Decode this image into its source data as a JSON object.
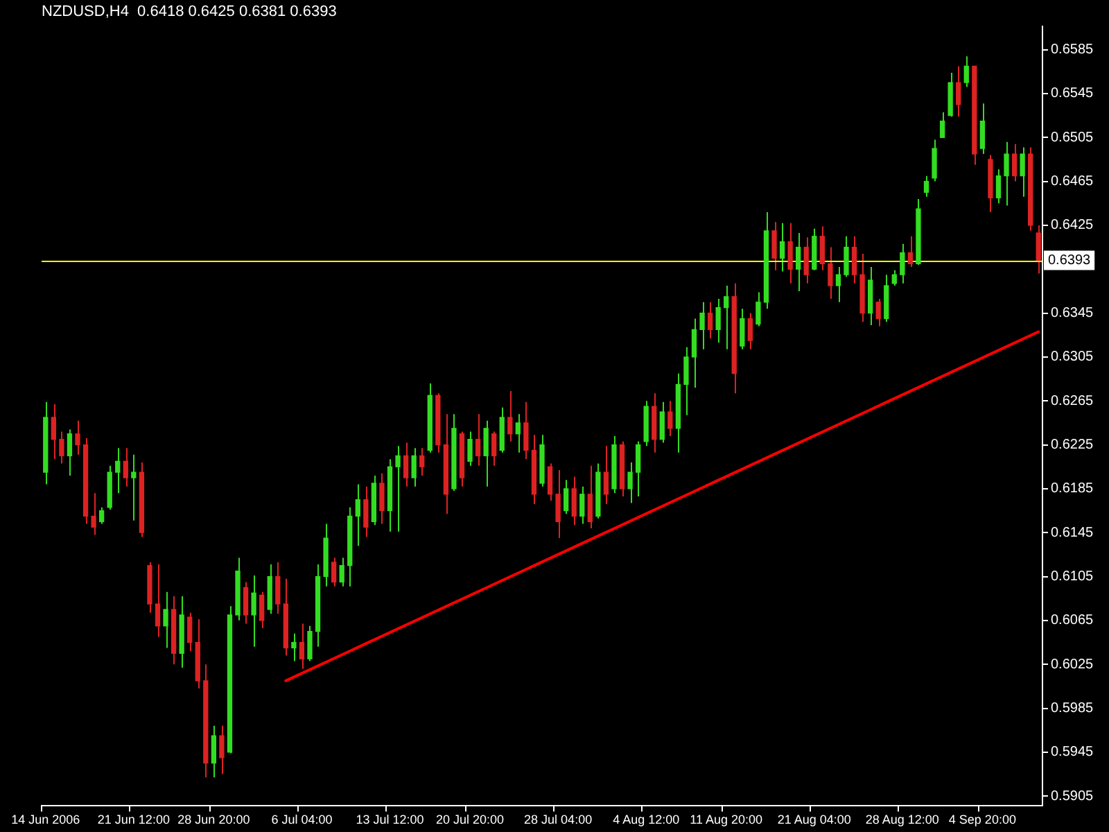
{
  "chart_data": {
    "type": "candlestick",
    "title": "NZDUSD,H4  0.6418 0.6425 0.6381 0.6393",
    "categories": [
      "14 Jun 2006",
      null,
      null,
      null,
      null,
      null,
      null,
      null,
      null,
      null,
      null,
      "21 Jun 12:00",
      null,
      null,
      null,
      null,
      null,
      null,
      null,
      null,
      null,
      "28 Jun 20:00",
      null,
      null,
      null,
      null,
      null,
      null,
      null,
      null,
      null,
      null,
      "6 Jul 04:00",
      null,
      null,
      null,
      null,
      null,
      null,
      null,
      null,
      null,
      null,
      "13 Jul 12:00",
      null,
      null,
      null,
      null,
      null,
      null,
      null,
      null,
      null,
      "20 Jul 20:00",
      null,
      null,
      null,
      null,
      null,
      null,
      null,
      null,
      null,
      null,
      "28 Jul 04:00",
      null,
      null,
      null,
      null,
      null,
      null,
      null,
      null,
      null,
      null,
      "4 Aug 12:00",
      null,
      null,
      null,
      null,
      null,
      null,
      null,
      null,
      null,
      "11 Aug 20:00",
      null,
      null,
      null,
      null,
      null,
      null,
      null,
      null,
      null,
      null,
      "21 Aug 04:00",
      null,
      null,
      null,
      null,
      null,
      null,
      null,
      null,
      null,
      null,
      "28 Aug 12:00",
      null,
      null,
      null,
      null,
      null,
      null,
      null,
      null,
      null,
      "4 Sep 20:00",
      null,
      null,
      null,
      null,
      null,
      null,
      null
    ],
    "ohlc": [
      [
        0.62,
        0.6264,
        0.6189,
        0.625
      ],
      [
        0.625,
        0.6262,
        0.6212,
        0.623
      ],
      [
        0.623,
        0.6237,
        0.6208,
        0.6215
      ],
      [
        0.6215,
        0.6239,
        0.6197,
        0.6235
      ],
      [
        0.6235,
        0.6247,
        0.6216,
        0.6225
      ],
      [
        0.6225,
        0.6231,
        0.6153,
        0.616
      ],
      [
        0.616,
        0.6181,
        0.6143,
        0.615
      ],
      [
        0.6155,
        0.6168,
        0.6153,
        0.6165
      ],
      [
        0.6168,
        0.6206,
        0.6166,
        0.62
      ],
      [
        0.62,
        0.6222,
        0.6181,
        0.621
      ],
      [
        0.621,
        0.6222,
        0.6187,
        0.6195
      ],
      [
        0.6195,
        0.6216,
        0.6156,
        0.62
      ],
      [
        0.62,
        0.6209,
        0.6141,
        0.6145
      ],
      [
        0.6115,
        0.6118,
        0.6072,
        0.608
      ],
      [
        0.608,
        0.6116,
        0.605,
        0.606
      ],
      [
        0.606,
        0.6091,
        0.604,
        0.6075
      ],
      [
        0.6075,
        0.6087,
        0.6025,
        0.6035
      ],
      [
        0.6035,
        0.6087,
        0.6022,
        0.607
      ],
      [
        0.6068,
        0.6072,
        0.6037,
        0.6045
      ],
      [
        0.6045,
        0.6066,
        0.6003,
        0.601
      ],
      [
        0.601,
        0.6025,
        0.5922,
        0.5935
      ],
      [
        0.5935,
        0.5969,
        0.5922,
        0.596
      ],
      [
        0.596,
        0.5969,
        0.5925,
        0.594
      ],
      [
        0.5945,
        0.6078,
        0.5944,
        0.607
      ],
      [
        0.607,
        0.6122,
        0.6065,
        0.611
      ],
      [
        0.6095,
        0.61,
        0.6062,
        0.607
      ],
      [
        0.607,
        0.6106,
        0.6041,
        0.609
      ],
      [
        0.6088,
        0.6091,
        0.6058,
        0.6065
      ],
      [
        0.6075,
        0.6116,
        0.6071,
        0.6105
      ],
      [
        0.6105,
        0.6118,
        0.6071,
        0.608
      ],
      [
        0.608,
        0.6103,
        0.6033,
        0.604
      ],
      [
        0.604,
        0.6053,
        0.6028,
        0.6045
      ],
      [
        0.6045,
        0.6062,
        0.6021,
        0.603
      ],
      [
        0.603,
        0.606,
        0.6028,
        0.6055
      ],
      [
        0.6055,
        0.6116,
        0.6041,
        0.6105
      ],
      [
        0.6105,
        0.6153,
        0.6096,
        0.614
      ],
      [
        0.6118,
        0.6122,
        0.6096,
        0.61
      ],
      [
        0.61,
        0.6122,
        0.6096,
        0.6115
      ],
      [
        0.6115,
        0.6168,
        0.6096,
        0.616
      ],
      [
        0.616,
        0.6189,
        0.6133,
        0.6175
      ],
      [
        0.6175,
        0.6187,
        0.6141,
        0.615
      ],
      [
        0.6155,
        0.6197,
        0.6152,
        0.619
      ],
      [
        0.619,
        0.6199,
        0.6153,
        0.6165
      ],
      [
        0.6165,
        0.6212,
        0.6146,
        0.6205
      ],
      [
        0.6205,
        0.6224,
        0.6146,
        0.6215
      ],
      [
        0.6215,
        0.6227,
        0.6187,
        0.6195
      ],
      [
        0.6195,
        0.6222,
        0.6187,
        0.6215
      ],
      [
        0.6215,
        0.6222,
        0.6197,
        0.6205
      ],
      [
        0.622,
        0.6281,
        0.6218,
        0.627
      ],
      [
        0.627,
        0.6272,
        0.6218,
        0.6225
      ],
      [
        0.6225,
        0.6253,
        0.6162,
        0.618
      ],
      [
        0.6185,
        0.6253,
        0.6183,
        0.624
      ],
      [
        0.6235,
        0.6237,
        0.6187,
        0.6195
      ],
      [
        0.621,
        0.6237,
        0.6206,
        0.623
      ],
      [
        0.623,
        0.6253,
        0.6206,
        0.6215
      ],
      [
        0.6215,
        0.6247,
        0.6187,
        0.624
      ],
      [
        0.6235,
        0.6237,
        0.6206,
        0.6215
      ],
      [
        0.622,
        0.6259,
        0.6218,
        0.625
      ],
      [
        0.625,
        0.6274,
        0.6228,
        0.6235
      ],
      [
        0.6235,
        0.6253,
        0.6218,
        0.6245
      ],
      [
        0.6245,
        0.6264,
        0.6212,
        0.622
      ],
      [
        0.622,
        0.6234,
        0.6171,
        0.618
      ],
      [
        0.619,
        0.6234,
        0.6187,
        0.6225
      ],
      [
        0.6205,
        0.6208,
        0.6174,
        0.618
      ],
      [
        0.618,
        0.6202,
        0.614,
        0.6155
      ],
      [
        0.6165,
        0.6193,
        0.6162,
        0.6185
      ],
      [
        0.6185,
        0.6196,
        0.6152,
        0.616
      ],
      [
        0.616,
        0.6187,
        0.6153,
        0.618
      ],
      [
        0.618,
        0.6206,
        0.6149,
        0.6155
      ],
      [
        0.616,
        0.6208,
        0.6158,
        0.62
      ],
      [
        0.62,
        0.6224,
        0.6171,
        0.618
      ],
      [
        0.6185,
        0.6233,
        0.6181,
        0.6225
      ],
      [
        0.6225,
        0.6228,
        0.6178,
        0.6185
      ],
      [
        0.6185,
        0.6209,
        0.6172,
        0.62
      ],
      [
        0.62,
        0.6228,
        0.6178,
        0.6225
      ],
      [
        0.6228,
        0.6265,
        0.6224,
        0.626
      ],
      [
        0.626,
        0.6272,
        0.6218,
        0.623
      ],
      [
        0.623,
        0.6264,
        0.6227,
        0.6255
      ],
      [
        0.6255,
        0.6265,
        0.6233,
        0.624
      ],
      [
        0.624,
        0.629,
        0.6218,
        0.628
      ],
      [
        0.628,
        0.6314,
        0.6252,
        0.6305
      ],
      [
        0.6305,
        0.634,
        0.6277,
        0.633
      ],
      [
        0.633,
        0.6355,
        0.6312,
        0.6345
      ],
      [
        0.6345,
        0.6355,
        0.6322,
        0.633
      ],
      [
        0.633,
        0.6358,
        0.6318,
        0.635
      ],
      [
        0.635,
        0.637,
        0.6312,
        0.636
      ],
      [
        0.636,
        0.6372,
        0.6272,
        0.629
      ],
      [
        0.6315,
        0.6349,
        0.6312,
        0.634
      ],
      [
        0.634,
        0.6345,
        0.6312,
        0.632
      ],
      [
        0.6335,
        0.6364,
        0.6333,
        0.6355
      ],
      [
        0.6355,
        0.6437,
        0.6349,
        0.642
      ],
      [
        0.642,
        0.6428,
        0.6384,
        0.6395
      ],
      [
        0.6395,
        0.6427,
        0.6383,
        0.641
      ],
      [
        0.641,
        0.6427,
        0.6372,
        0.6385
      ],
      [
        0.6385,
        0.6418,
        0.6365,
        0.6405
      ],
      [
        0.6405,
        0.6414,
        0.6372,
        0.638
      ],
      [
        0.6385,
        0.6422,
        0.6384,
        0.6415
      ],
      [
        0.6415,
        0.6424,
        0.6384,
        0.639
      ],
      [
        0.639,
        0.6405,
        0.6358,
        0.637
      ],
      [
        0.637,
        0.6387,
        0.6355,
        0.638
      ],
      [
        0.638,
        0.6415,
        0.6378,
        0.6405
      ],
      [
        0.6405,
        0.6415,
        0.6372,
        0.638
      ],
      [
        0.638,
        0.6399,
        0.6337,
        0.6345
      ],
      [
        0.6345,
        0.6387,
        0.6334,
        0.6375
      ],
      [
        0.6355,
        0.6358,
        0.6333,
        0.634
      ],
      [
        0.634,
        0.638,
        0.6337,
        0.637
      ],
      [
        0.6372,
        0.6384,
        0.637,
        0.638
      ],
      [
        0.638,
        0.6408,
        0.6372,
        0.64
      ],
      [
        0.64,
        0.6415,
        0.6387,
        0.639
      ],
      [
        0.639,
        0.6449,
        0.6389,
        0.644
      ],
      [
        0.6455,
        0.647,
        0.6451,
        0.6465
      ],
      [
        0.6468,
        0.6503,
        0.6465,
        0.6495
      ],
      [
        0.6505,
        0.6528,
        0.6505,
        0.652
      ],
      [
        0.6525,
        0.6564,
        0.6524,
        0.6555
      ],
      [
        0.6555,
        0.657,
        0.6524,
        0.6535
      ],
      [
        0.6555,
        0.6579,
        0.6551,
        0.657
      ],
      [
        0.657,
        0.657,
        0.648,
        0.649
      ],
      [
        0.6495,
        0.6536,
        0.649,
        0.652
      ],
      [
        0.6485,
        0.6489,
        0.6437,
        0.645
      ],
      [
        0.645,
        0.6476,
        0.6445,
        0.647
      ],
      [
        0.647,
        0.6501,
        0.6443,
        0.649
      ],
      [
        0.649,
        0.6499,
        0.6465,
        0.647
      ],
      [
        0.647,
        0.6496,
        0.6451,
        0.649
      ],
      [
        0.649,
        0.6496,
        0.642,
        0.6425
      ],
      [
        0.6418,
        0.6425,
        0.6381,
        0.6393
      ]
    ],
    "colors": [
      "#33dd22",
      "#dd2222",
      "#dd2222",
      "#33dd22",
      "#dd2222",
      "#dd2222",
      "#dd2222",
      "#33dd22",
      "#33dd22",
      "#33dd22",
      "#dd2222",
      "#33dd22",
      "#dd2222",
      "#dd2222",
      "#dd2222",
      "#33dd22",
      "#dd2222",
      "#33dd22",
      "#dd2222",
      "#dd2222",
      "#dd2222",
      "#33dd22",
      "#dd2222",
      "#33dd22",
      "#33dd22",
      "#dd2222",
      "#33dd22",
      "#dd2222",
      "#33dd22",
      "#dd2222",
      "#dd2222",
      "#33dd22",
      "#dd2222",
      "#33dd22",
      "#33dd22",
      "#33dd22",
      "#dd2222",
      "#33dd22",
      "#33dd22",
      "#33dd22",
      "#dd2222",
      "#33dd22",
      "#dd2222",
      "#33dd22",
      "#33dd22",
      "#dd2222",
      "#33dd22",
      "#dd2222",
      "#33dd22",
      "#dd2222",
      "#dd2222",
      "#33dd22",
      "#dd2222",
      "#33dd22",
      "#dd2222",
      "#33dd22",
      "#dd2222",
      "#33dd22",
      "#dd2222",
      "#33dd22",
      "#dd2222",
      "#dd2222",
      "#33dd22",
      "#dd2222",
      "#dd2222",
      "#33dd22",
      "#dd2222",
      "#33dd22",
      "#dd2222",
      "#33dd22",
      "#dd2222",
      "#33dd22",
      "#dd2222",
      "#33dd22",
      "#33dd22",
      "#33dd22",
      "#dd2222",
      "#33dd22",
      "#dd2222",
      "#33dd22",
      "#33dd22",
      "#33dd22",
      "#33dd22",
      "#dd2222",
      "#33dd22",
      "#33dd22",
      "#dd2222",
      "#33dd22",
      "#dd2222",
      "#33dd22",
      "#33dd22",
      "#dd2222",
      "#33dd22",
      "#dd2222",
      "#33dd22",
      "#dd2222",
      "#33dd22",
      "#dd2222",
      "#dd2222",
      "#33dd22",
      "#33dd22",
      "#dd2222",
      "#dd2222",
      "#33dd22",
      "#dd2222",
      "#33dd22",
      "#33dd22",
      "#33dd22",
      "#dd2222",
      "#33dd22",
      "#33dd22",
      "#33dd22",
      "#33dd22",
      "#33dd22",
      "#dd2222",
      "#33dd22",
      "#dd2222",
      "#33dd22",
      "#dd2222",
      "#33dd22",
      "#33dd22",
      "#dd2222",
      "#33dd22",
      "#dd2222",
      "#dd2222"
    ],
    "series": [
      {
        "type": "line",
        "color": "#ff0000",
        "values": [
          null,
          null,
          null,
          null,
          null,
          null,
          null,
          null,
          null,
          null,
          null,
          null,
          null,
          null,
          null,
          null,
          null,
          null,
          null,
          null,
          null,
          null,
          null,
          null,
          null,
          null,
          null,
          null,
          null,
          null,
          0.601,
          null,
          null,
          null,
          null,
          null,
          null,
          null,
          null,
          null,
          null,
          null,
          null,
          null,
          null,
          null,
          null,
          null,
          null,
          null,
          null,
          null,
          null,
          null,
          null,
          null,
          null,
          null,
          null,
          null,
          null,
          null,
          null,
          null,
          null,
          null,
          null,
          null,
          null,
          null,
          null,
          null,
          null,
          null,
          null,
          null,
          null,
          null,
          null,
          null,
          null,
          null,
          null,
          null,
          null,
          null,
          null,
          null,
          null,
          null,
          null,
          null,
          null,
          null,
          null,
          null,
          null,
          null,
          null,
          null,
          null,
          null,
          null,
          null,
          null,
          null,
          null,
          null,
          null,
          null,
          null,
          null,
          null,
          null,
          null,
          null,
          null,
          null,
          null,
          null,
          null,
          null,
          null,
          null,
          0.6328
        ]
      }
    ],
    "ylim": [
      0.5896,
      0.6606
    ],
    "yticks": [
      0.5905,
      0.5945,
      0.5985,
      0.6025,
      0.6065,
      0.6105,
      0.6145,
      0.6185,
      0.6225,
      0.6265,
      0.6305,
      0.6345,
      0.6425,
      0.6465,
      0.6505,
      0.6545,
      0.6585
    ],
    "ref_lines": [
      {
        "axis": "y",
        "value": 0.6393,
        "label": "0.6393",
        "color": "#ffff00"
      }
    ]
  }
}
